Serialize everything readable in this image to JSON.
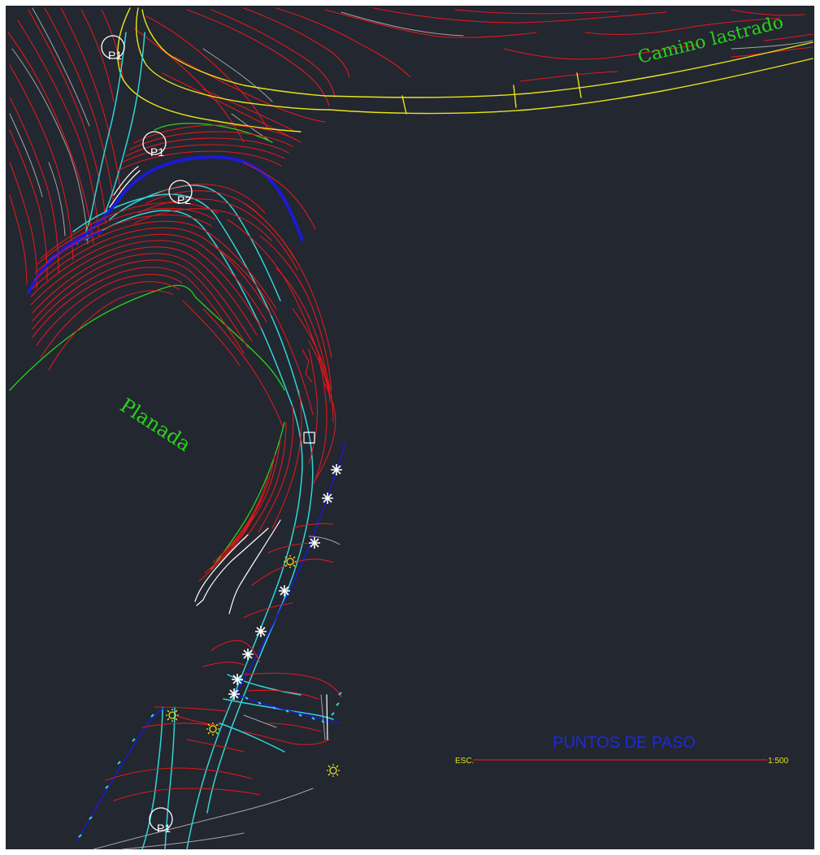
{
  "labels": {
    "road": "Camino lastrado",
    "flat": "Planada",
    "p1_top": "P1",
    "p1_mid": "P1",
    "p2": "P2",
    "p1_bottom": "P1",
    "title": "PUNTOS DE PASO",
    "scale_left": "ESC.",
    "scale_right": "1:500"
  },
  "colors": {
    "background": "#222730",
    "contour": "#e0191b",
    "contour_minor": "#a6a6a6",
    "road": "#e7e41b",
    "path": "#31d6d6",
    "ditch": "#1a1ad9",
    "vegetation": "#2ad21a",
    "text_green": "#2ad21a",
    "title": "#1f2ad9",
    "scale_text": "#e7e41b",
    "marker": "#ffffff"
  },
  "icons": {
    "tree": "asterisk-icon",
    "lamp": "sun-icon",
    "waypoint": "circle-marker-icon"
  }
}
